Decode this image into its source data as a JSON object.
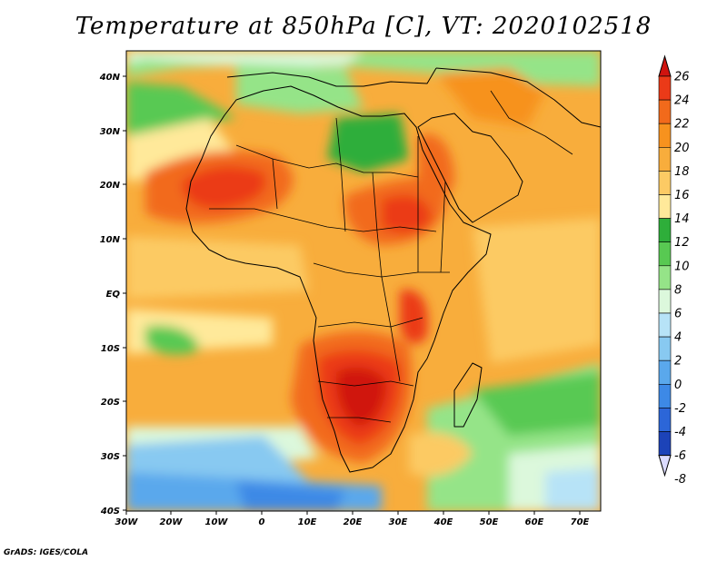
{
  "title": "Temperature at 850hPa [C], VT: 2020102518",
  "credit": "GrADS: IGES/COLA",
  "lat_labels": [
    "40N",
    "30N",
    "20N",
    "10N",
    "EQ",
    "10S",
    "20S",
    "30S",
    "40S"
  ],
  "lon_labels": [
    "30W",
    "20W",
    "10W",
    "0",
    "10E",
    "20E",
    "30E",
    "40E",
    "50E",
    "60E",
    "70E"
  ],
  "colorbar": {
    "levels": [
      "26",
      "24",
      "22",
      "20",
      "18",
      "16",
      "14",
      "12",
      "10",
      "8",
      "6",
      "4",
      "2",
      "0",
      "-2",
      "-4",
      "-6",
      "-8"
    ],
    "colors": [
      "#d0140f",
      "#eb3a18",
      "#f26a1b",
      "#f7921e",
      "#f8ad3c",
      "#fcca64",
      "#ffe99a",
      "#2eae3a",
      "#58c952",
      "#95e488",
      "#dcf8dc",
      "#b7e3f7",
      "#88c9f1",
      "#5aa8ec",
      "#3d89e6",
      "#2c66d8",
      "#1c43b8",
      "#0e1f86"
    ]
  },
  "colors": {
    "ocean_warm": "#f7b24a",
    "ocean_mid": "#ffe99a",
    "ocean_green": "#58c952",
    "ocean_cold": "#3d89e6",
    "land_hot": "#eb3a18",
    "land_warm": "#f7921e"
  }
}
